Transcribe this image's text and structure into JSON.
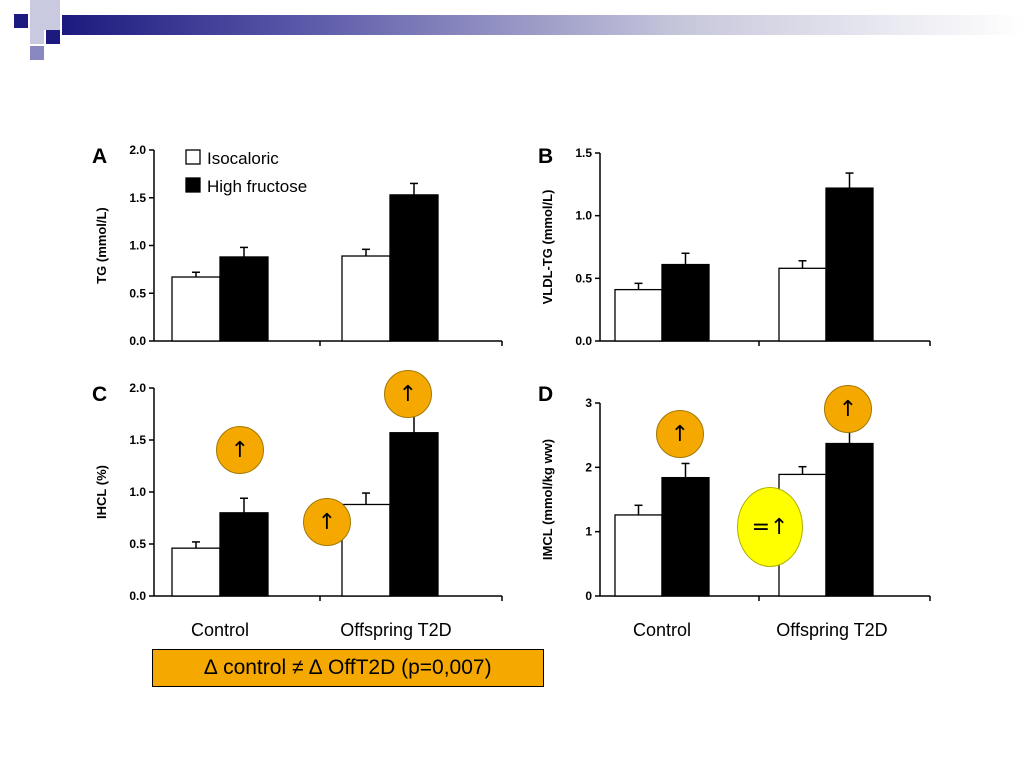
{
  "slide": {
    "accent_color": "#1c1a7e",
    "bar_gradient_end": "#ffffff"
  },
  "legend": {
    "items": [
      {
        "label": "Isocaloric",
        "color": "#ffffff"
      },
      {
        "label": "High fructose",
        "color": "#000000"
      }
    ]
  },
  "chart_data": [
    {
      "panel": "A",
      "type": "bar",
      "ylabel": "TG (mmol/L)",
      "ylim": [
        0,
        2.0
      ],
      "yticks": [
        "0.0",
        "0.5",
        "1.0",
        "1.5",
        "2.0"
      ],
      "categories": [
        "Control",
        "Offspring T2D"
      ],
      "show_category_labels": false,
      "series": [
        {
          "name": "Isocaloric",
          "values": [
            0.67,
            0.89
          ],
          "errors": [
            0.05,
            0.07
          ]
        },
        {
          "name": "High fructose",
          "values": [
            0.88,
            1.53
          ],
          "errors": [
            0.1,
            0.12
          ]
        }
      ]
    },
    {
      "panel": "B",
      "type": "bar",
      "ylabel": "VLDL-TG (mmol/L)",
      "ylim": [
        0,
        1.5
      ],
      "yticks": [
        "0.0",
        "0.5",
        "1.0",
        "1.5"
      ],
      "categories": [
        "Control",
        "Offspring T2D"
      ],
      "show_category_labels": false,
      "series": [
        {
          "name": "Isocaloric",
          "values": [
            0.41,
            0.58
          ],
          "errors": [
            0.05,
            0.06
          ]
        },
        {
          "name": "High fructose",
          "values": [
            0.61,
            1.22
          ],
          "errors": [
            0.09,
            0.12
          ]
        }
      ]
    },
    {
      "panel": "C",
      "type": "bar",
      "ylabel": "IHCL (%)",
      "ylim": [
        0,
        2.0
      ],
      "yticks": [
        "0.0",
        "0.5",
        "1.0",
        "1.5",
        "2.0"
      ],
      "categories": [
        "Control",
        "Offspring T2D"
      ],
      "show_category_labels": true,
      "series": [
        {
          "name": "Isocaloric",
          "values": [
            0.46,
            0.88
          ],
          "errors": [
            0.06,
            0.11
          ]
        },
        {
          "name": "High fructose",
          "values": [
            0.8,
            1.57
          ],
          "errors": [
            0.14,
            0.2
          ]
        }
      ]
    },
    {
      "panel": "D",
      "type": "bar",
      "ylabel": "IMCL (mmol/kg ww)",
      "ylim": [
        0,
        3
      ],
      "yticks": [
        "0",
        "1",
        "2",
        "3"
      ],
      "categories": [
        "Control",
        "Offspring T2D"
      ],
      "show_category_labels": true,
      "series": [
        {
          "name": "Isocaloric",
          "values": [
            1.26,
            1.89
          ],
          "errors": [
            0.15,
            0.12
          ]
        },
        {
          "name": "High fructose",
          "values": [
            1.84,
            2.37
          ],
          "errors": [
            0.22,
            0.22
          ]
        }
      ]
    }
  ],
  "annotations": {
    "c_control_arrow": "↑",
    "c_between_arrow": "↑",
    "c_offspring_arrow": "↑",
    "d_control_arrow": "↑",
    "d_offspring_arrow": "↑",
    "d_equal_arrow": "=↑",
    "orange_color": "#f5a900",
    "yellow_color": "#ffff00"
  },
  "result_box": {
    "text": "∆ control ≠ ∆ OffT2D  (p=0,007)"
  }
}
